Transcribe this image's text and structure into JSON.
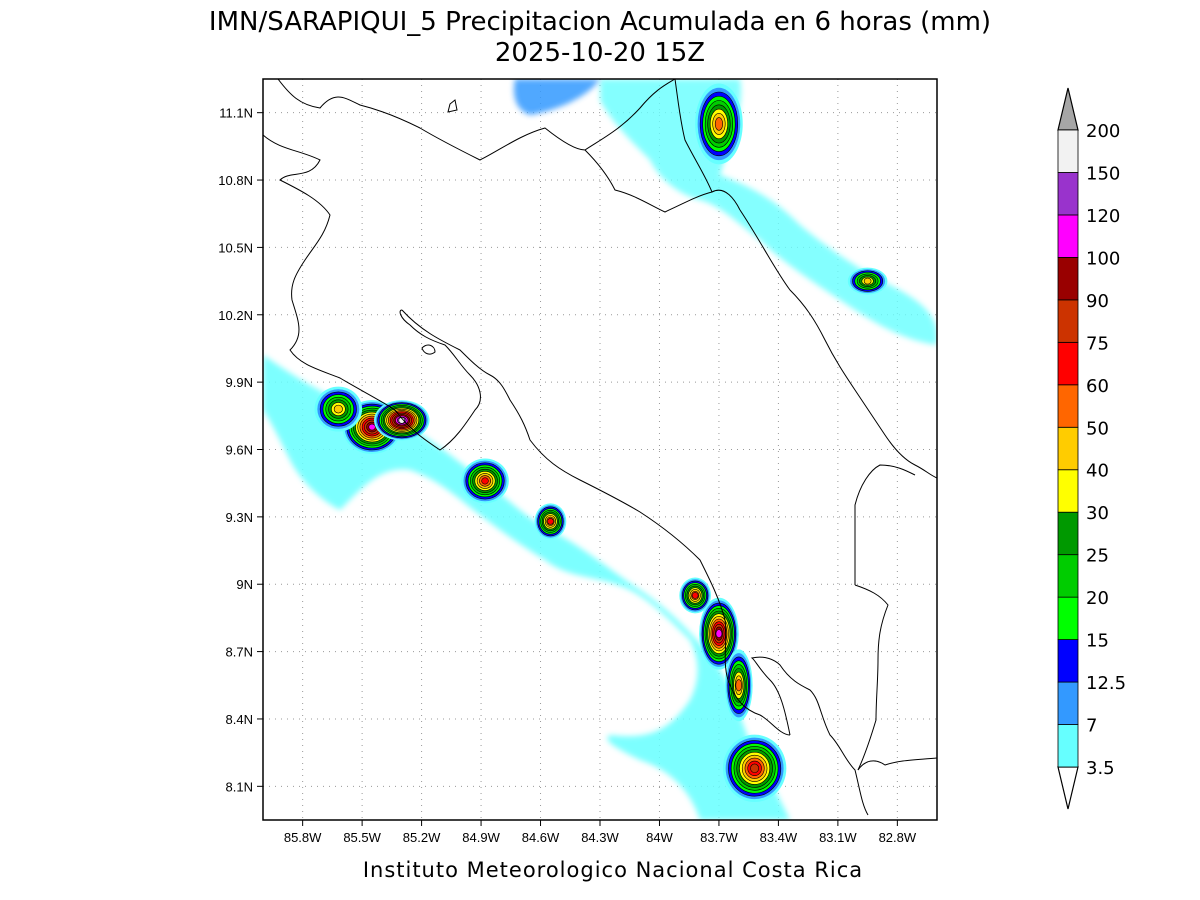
{
  "title_line1": "IMN/SARAPIQUI_5 Precipitacion Acumulada en 6 horas (mm)",
  "title_line2": "2025-10-20 15Z",
  "footer": "Instituto Meteorologico Nacional Costa Rica",
  "map": {
    "lon_range": [
      -86.0,
      -82.6
    ],
    "lat_range": [
      7.95,
      11.25
    ],
    "lon_ticks": [
      "85.8W",
      "85.5W",
      "85.2W",
      "84.9W",
      "84.6W",
      "84.3W",
      "84W",
      "83.7W",
      "83.4W",
      "83.1W",
      "82.8W"
    ],
    "lon_values": [
      -85.8,
      -85.5,
      -85.2,
      -84.9,
      -84.6,
      -84.3,
      -84.0,
      -83.7,
      -83.4,
      -83.1,
      -82.8
    ],
    "lat_ticks": [
      "8.1N",
      "8.4N",
      "8.7N",
      "9N",
      "9.3N",
      "9.6N",
      "9.9N",
      "10.2N",
      "10.5N",
      "10.8N",
      "11.1N"
    ],
    "lat_values": [
      8.1,
      8.4,
      8.7,
      9.0,
      9.3,
      9.6,
      9.9,
      10.2,
      10.5,
      10.8,
      11.1
    ],
    "grid": true
  },
  "colorbar": {
    "labels": [
      "3.5",
      "7",
      "12.5",
      "15",
      "20",
      "25",
      "30",
      "40",
      "50",
      "60",
      "75",
      "90",
      "100",
      "120",
      "150",
      "200"
    ],
    "colors": [
      "#66ffff",
      "#3399ff",
      "#0000ff",
      "#00ff00",
      "#00cc00",
      "#009900",
      "#ffff00",
      "#ffcc00",
      "#ff6600",
      "#ff0000",
      "#cc3300",
      "#990000",
      "#ff00ff",
      "#9933cc",
      "#f2f2f2",
      "#a6a6a6"
    ]
  },
  "precip_cells": [
    {
      "lon": -84.88,
      "lat": 9.46,
      "rx": 0.12,
      "ry": 0.1,
      "max": 60
    },
    {
      "lon": -84.55,
      "lat": 9.28,
      "rx": 0.08,
      "ry": 0.08,
      "max": 60
    },
    {
      "lon": -85.45,
      "lat": 9.7,
      "rx": 0.15,
      "ry": 0.12,
      "max": 100
    },
    {
      "lon": -85.3,
      "lat": 9.73,
      "rx": 0.14,
      "ry": 0.09,
      "max": 150
    },
    {
      "lon": -85.62,
      "lat": 9.78,
      "rx": 0.12,
      "ry": 0.1,
      "max": 40
    },
    {
      "lon": -83.7,
      "lat": 8.78,
      "rx": 0.1,
      "ry": 0.16,
      "max": 100
    },
    {
      "lon": -83.82,
      "lat": 8.95,
      "rx": 0.08,
      "ry": 0.08,
      "max": 60
    },
    {
      "lon": -83.6,
      "lat": 8.55,
      "rx": 0.07,
      "ry": 0.16,
      "max": 50
    },
    {
      "lon": -83.52,
      "lat": 8.18,
      "rx": 0.16,
      "ry": 0.15,
      "max": 75
    },
    {
      "lon": -83.7,
      "lat": 11.05,
      "rx": 0.12,
      "ry": 0.18,
      "max": 50
    },
    {
      "lon": -82.95,
      "lat": 10.35,
      "rx": 0.1,
      "ry": 0.06,
      "max": 40
    }
  ]
}
